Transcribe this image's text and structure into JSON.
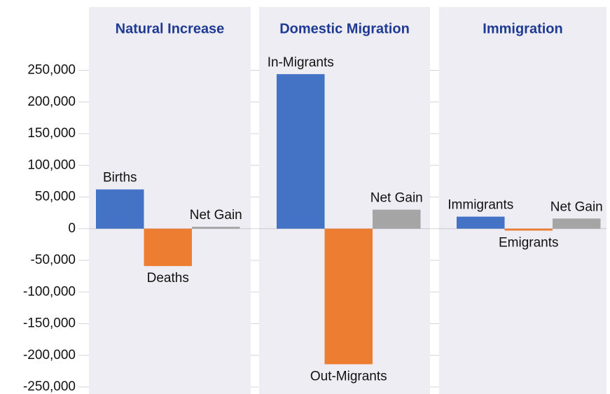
{
  "chart_data": {
    "type": "bar",
    "ylim": [
      -261000,
      350000
    ],
    "yticks": [
      {
        "value": 250000,
        "label": "250,000"
      },
      {
        "value": 200000,
        "label": "200,000"
      },
      {
        "value": 150000,
        "label": "150,000"
      },
      {
        "value": 100000,
        "label": "100,000"
      },
      {
        "value": 50000,
        "label": "50,000"
      },
      0,
      {
        "value": -50000,
        "label": "-50,000"
      },
      {
        "value": -100000,
        "label": "-100,000"
      },
      {
        "value": -150000,
        "label": "-150,000"
      },
      {
        "value": -200000,
        "label": "-200,000"
      },
      {
        "value": -250000,
        "label": "-250,000"
      }
    ],
    "colors": [
      "#4472c4",
      "#ed7d31",
      "#a5a5a5"
    ],
    "panels": [
      {
        "title": "Natural Increase",
        "categories": [
          "Births",
          "Deaths",
          "Net Gain"
        ],
        "values": [
          62000,
          -59000,
          3000
        ]
      },
      {
        "title": "Domestic Migration",
        "categories": [
          "In-Migrants",
          "Out-Migrants",
          "Net Gain"
        ],
        "values": [
          244000,
          -214000,
          30000
        ]
      },
      {
        "title": "Immigration",
        "categories": [
          "Immigrants",
          "Emigrants",
          "Net Gain"
        ],
        "values": [
          19000,
          -3000,
          16000
        ]
      }
    ]
  }
}
